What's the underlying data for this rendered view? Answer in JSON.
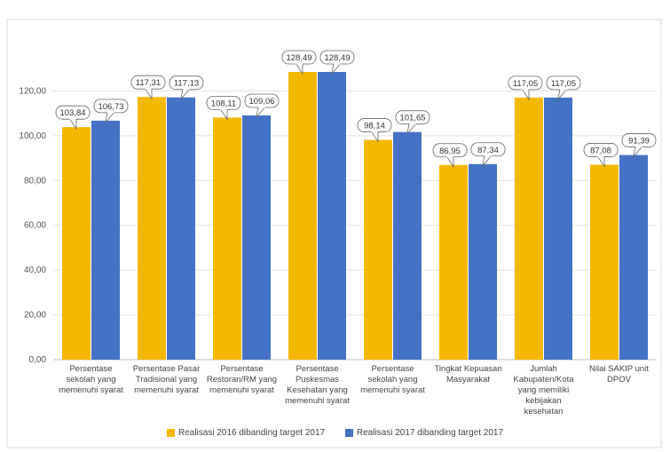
{
  "chart_data": {
    "type": "bar",
    "title": "",
    "xlabel": "",
    "ylabel": "",
    "ylim": [
      0,
      140
    ],
    "yticks": [
      "0,00",
      "20,00",
      "40,00",
      "60,00",
      "80,00",
      "100,00",
      "120,00"
    ],
    "grid": true,
    "legend_position": "bottom",
    "categories": [
      "Persentase sekolah yang memenuhi syarat",
      "Persentase Pasar Tradisional yang memenuhi syarat",
      "Persentase Restoran/RM yang memenuhi syarat",
      "Persentase Puskesmas Kesehatan yang memenuhi syarat",
      "Persentase sekolah yang memenuhi syarat",
      "Tingkat Kepuasan Masyarakat",
      "Jumlah Kabupaten/Kota yang memiliki kebijakan kesehatan",
      "Nilai SAKIP unit DPOV"
    ],
    "series": [
      {
        "name": "Realisasi 2016 dibanding target 2017",
        "color": "#F5B800",
        "values": [
          103.84,
          117.31,
          108.11,
          128.49,
          98.14,
          86.95,
          117.05,
          87.08
        ],
        "labels": [
          "103,84",
          "117,31",
          "108,11",
          "128,49",
          "98,14",
          "86,95",
          "117,05",
          "87,08"
        ]
      },
      {
        "name": "Realisasi 2017 dibanding target 2017",
        "color": "#4472C4",
        "values": [
          106.73,
          117.13,
          109.06,
          128.49,
          101.65,
          87.34,
          117.05,
          91.39
        ],
        "labels": [
          "106,73",
          "117,13",
          "109,06",
          "128,49",
          "101,65",
          "87,34",
          "117,05",
          "91,39"
        ]
      }
    ]
  }
}
